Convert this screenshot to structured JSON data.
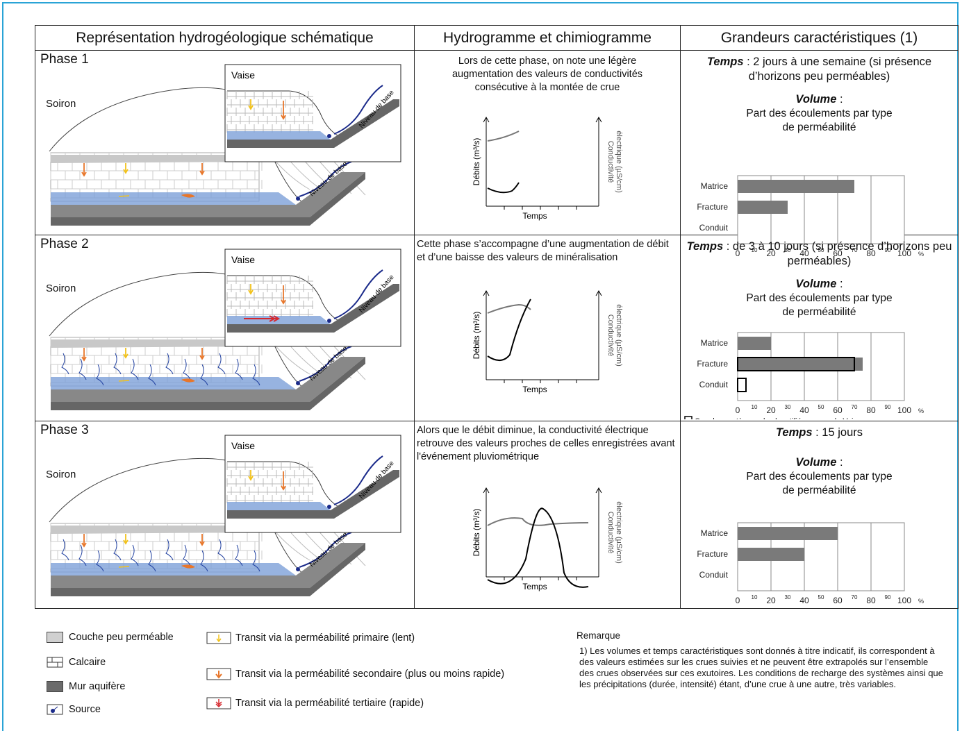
{
  "headers": {
    "col1": "Représentation hydrogéologique schématique",
    "col2": "Hydrogramme et chimiogramme",
    "col3": "Grandeurs caractéristiques (1)"
  },
  "schema_labels": {
    "vaise": "Vaise",
    "soiron": "Soiron",
    "niveau": "Niveau de base"
  },
  "axes": {
    "debits": "Débits (m³/s)",
    "conductivite_1": "Conductivité",
    "conductivite_2": "électrique (µS/cm)",
    "temps": "Temps"
  },
  "phases": [
    {
      "label": "Phase 1",
      "description": "Lors de cette phase, on note une légère augmentation des valeurs de conductivités consécutive à la montée de crue",
      "temps_label": "Temps",
      "temps_value": " : 2 jours à une semaine (si présence d’horizons peu perméables)",
      "volume_label": "Volume",
      "volume_colon": " :",
      "part": "Part des écoulements par type de perméabilité"
    },
    {
      "label": "Phase 2",
      "description": "Cette phase s’accompagne d’une augmentation de débit et d’une baisse des valeurs de minéralisation",
      "temps_label": "Temps",
      "temps_value": " : de 3 à 10 jours (si présence d’horizons peu perméables)",
      "volume_label": "Volume",
      "volume_colon": " :",
      "part": "Part des écoulements par type de perméabilité",
      "note": "Cas des systèmes plus karstifiés comme la Vaise"
    },
    {
      "label": "Phase 3",
      "description": "Alors que le débit diminue, la conductivité électrique retrouve des valeurs proches de celles enregistrées avant l'événement pluviométrique",
      "temps_label": "Temps",
      "temps_value": " : 15 jours",
      "volume_label": "Volume",
      "volume_colon": " :",
      "part": "Part des écoulements par type de perméabilité"
    }
  ],
  "chart_data": [
    {
      "type": "bar",
      "categories": [
        "Matrice",
        "Fracture",
        "Conduit"
      ],
      "values": [
        70,
        30,
        0
      ],
      "xlim": [
        0,
        100
      ],
      "ticks": [
        "0",
        "10",
        "20",
        "30",
        "40",
        "50",
        "60",
        "70",
        "80",
        "90",
        "100"
      ],
      "unit": "%"
    },
    {
      "type": "bar",
      "categories": [
        "Matrice",
        "Fracture",
        "Conduit"
      ],
      "values": [
        20,
        75,
        0
      ],
      "series_karst": [
        0,
        70,
        5
      ],
      "xlim": [
        0,
        100
      ],
      "ticks": [
        "0",
        "10",
        "20",
        "30",
        "40",
        "50",
        "60",
        "70",
        "80",
        "90",
        "100"
      ],
      "unit": "%"
    },
    {
      "type": "bar",
      "categories": [
        "Matrice",
        "Fracture",
        "Conduit"
      ],
      "values": [
        60,
        40,
        0
      ],
      "xlim": [
        0,
        100
      ],
      "ticks": [
        "0",
        "10",
        "20",
        "30",
        "40",
        "50",
        "60",
        "70",
        "80",
        "90",
        "100"
      ],
      "unit": "%"
    }
  ],
  "legend": {
    "couche": "Couche peu perméable",
    "calcaire": "Calcaire",
    "mur": "Mur aquifère",
    "source": "Source",
    "primaire": "Transit via la perméabilité primaire (lent)",
    "secondaire": "Transit via la perméabilité secondaire (plus ou moins rapide)",
    "tertiaire": "Transit via la perméabilité tertiaire (rapide)"
  },
  "remark": {
    "title": "Remarque",
    "text": "1) Les volumes et temps caractéristiques sont donnés à titre indicatif, ils correspondent à des valeurs estimées sur les crues suivies et ne peuvent être extrapolés sur l’ensemble des crues observées sur ces exutoires. Les conditions de recharge des systèmes ainsi que les précipitations (durée, intensité) étant, d’une crue à une autre, très variables."
  },
  "colors": {
    "frame": "#2aa3d6",
    "bar": "#7a7a7a",
    "water": "#7da0d8",
    "layer": "#c8c8c8",
    "base": "#666666",
    "river": "#1a2a8a",
    "primary": "#f2c21b",
    "secondary": "#e8762a",
    "tertiary": "#d6282e"
  }
}
